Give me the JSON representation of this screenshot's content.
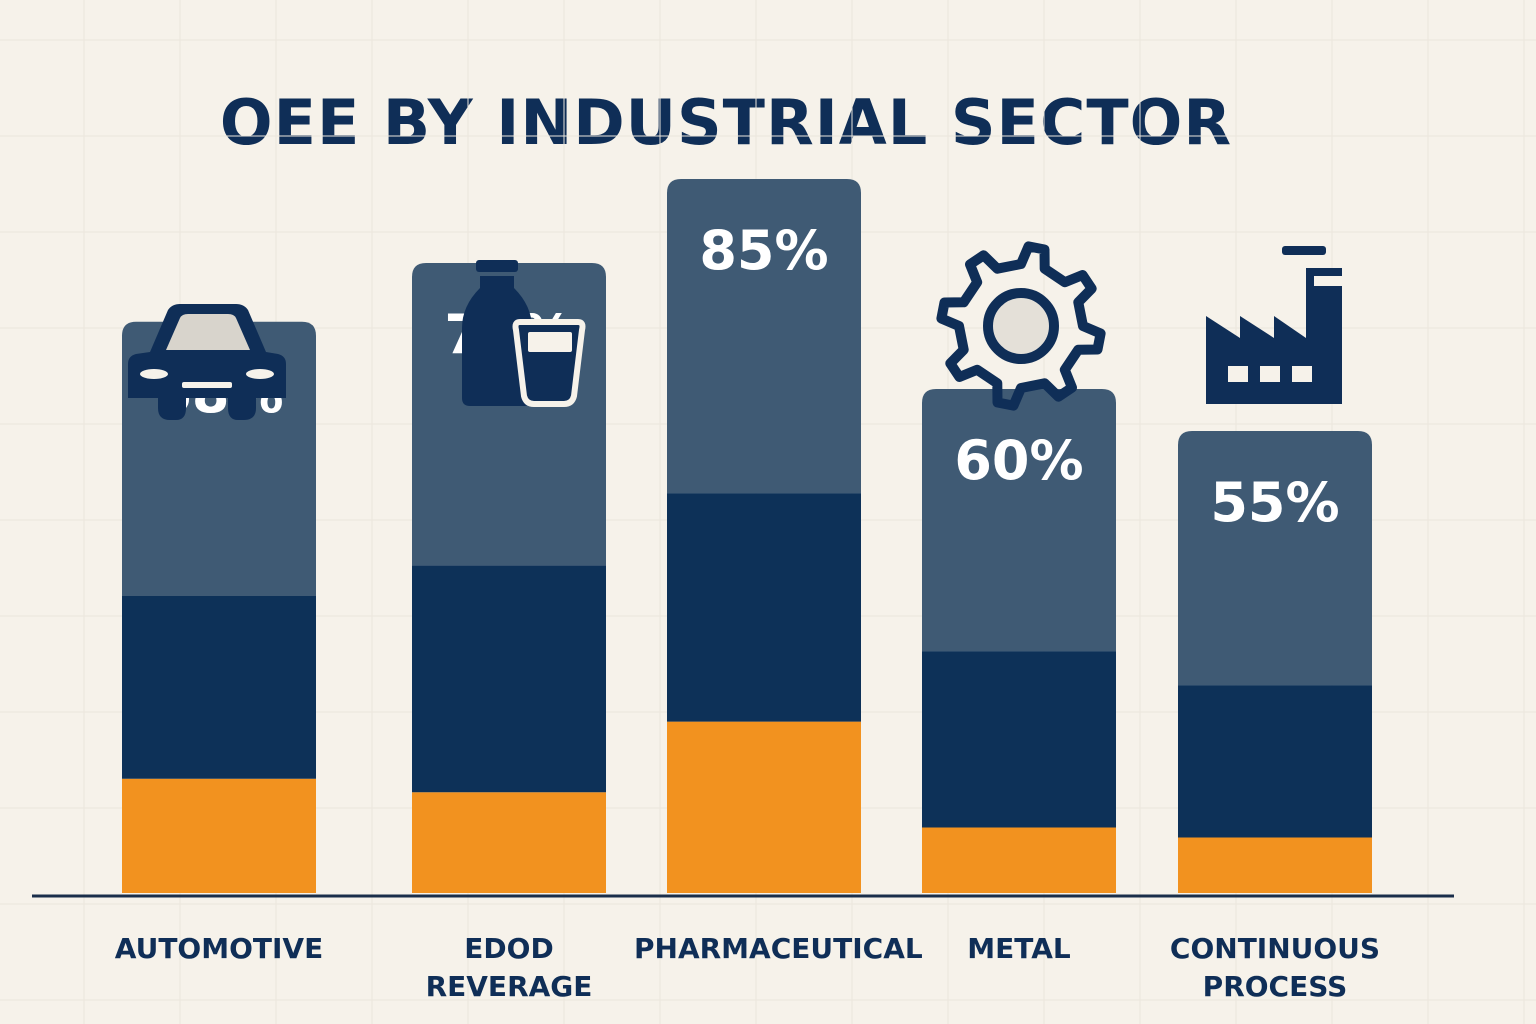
{
  "chart_data": {
    "type": "bar",
    "stacked": true,
    "title": "OEE BY INDUSTRIAL SECTOR",
    "xlabel": "",
    "ylabel": "",
    "categories": [
      "AUTOMOTIVE",
      "EDOD\nREVERAGE",
      "PHARMACEUTICAL",
      "METAL",
      "CONTINUOUS\nPROCESS"
    ],
    "category_icons": [
      "car-icon",
      "bottle-and-glass-icon",
      "",
      "gear-icon",
      "factory-icon"
    ],
    "values": [
      68,
      75,
      85,
      60,
      55
    ],
    "value_labels": [
      "68%",
      "75%",
      "85%",
      "60%",
      "55%"
    ],
    "segment_fractions": [
      [
        0.2,
        0.32,
        0.48
      ],
      [
        0.16,
        0.36,
        0.48
      ],
      [
        0.24,
        0.32,
        0.44
      ],
      [
        0.13,
        0.35,
        0.52
      ],
      [
        0.12,
        0.33,
        0.55
      ]
    ],
    "segment_colors": [
      "#f2921f",
      "#0d3158",
      "#3f5a74"
    ],
    "ylim": [
      0,
      100
    ],
    "grid": true,
    "legend": "none"
  }
}
